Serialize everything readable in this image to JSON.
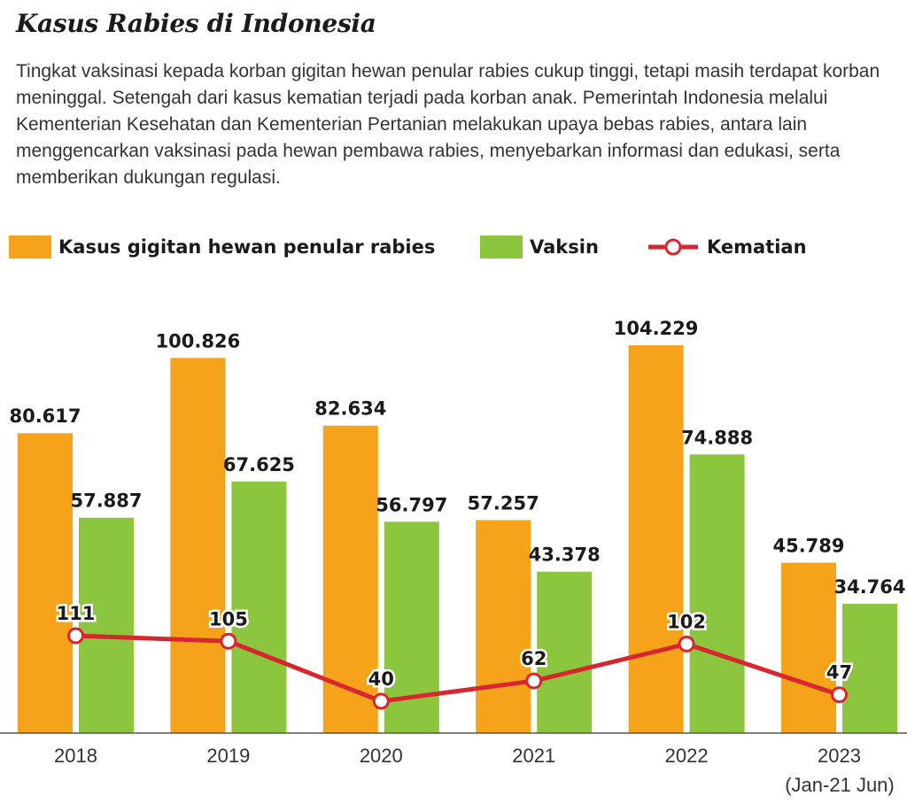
{
  "header": {
    "title": "Kasus Rabies di Indonesia",
    "description": "Tingkat vaksinasi kepada korban gigitan hewan penular rabies cukup tinggi, tetapi masih terdapat korban meninggal. Setengah dari kasus kematian terjadi pada korban anak. Pemerintah Indonesia melalui Kementerian Kesehatan dan Kementerian Pertanian melakukan upaya bebas rabies, antara lain menggencarkan vaksinasi pada hewan pembawa rabies, menyebarkan informasi dan edukasi, serta memberikan dukungan regulasi."
  },
  "legend": {
    "cases": "Kasus gigitan hewan penular rabies",
    "vaccine": "Vaksin",
    "deaths": "Kematian"
  },
  "colors": {
    "cases": "#F5A31A",
    "vaccine": "#8CC63F",
    "deaths": "#D7262D"
  },
  "chart_data": {
    "type": "bar",
    "categories": [
      "2018",
      "2019",
      "2020",
      "2021",
      "2022",
      "2023"
    ],
    "category_sublabels": [
      "",
      "",
      "",
      "",
      "",
      "(Jan-21 Jun)"
    ],
    "series": [
      {
        "name": "Kasus gigitan hewan penular rabies",
        "type": "bar",
        "values": [
          80617,
          100826,
          82634,
          57257,
          104229,
          45789
        ],
        "labels": [
          "80.617",
          "100.826",
          "82.634",
          "57.257",
          "104.229",
          "45.789"
        ]
      },
      {
        "name": "Vaksin",
        "type": "bar",
        "values": [
          57887,
          67625,
          56797,
          43378,
          74888,
          34764
        ],
        "labels": [
          "57.887",
          "67.625",
          "56.797",
          "43.378",
          "74.888",
          "34.764"
        ]
      },
      {
        "name": "Kematian",
        "type": "line",
        "values": [
          111,
          105,
          40,
          62,
          102,
          47
        ],
        "labels": [
          "111",
          "105",
          "40",
          "62",
          "102",
          "47"
        ]
      }
    ],
    "ylim": [
      0,
      104229
    ],
    "grid": false,
    "legend_position": "top-left"
  }
}
